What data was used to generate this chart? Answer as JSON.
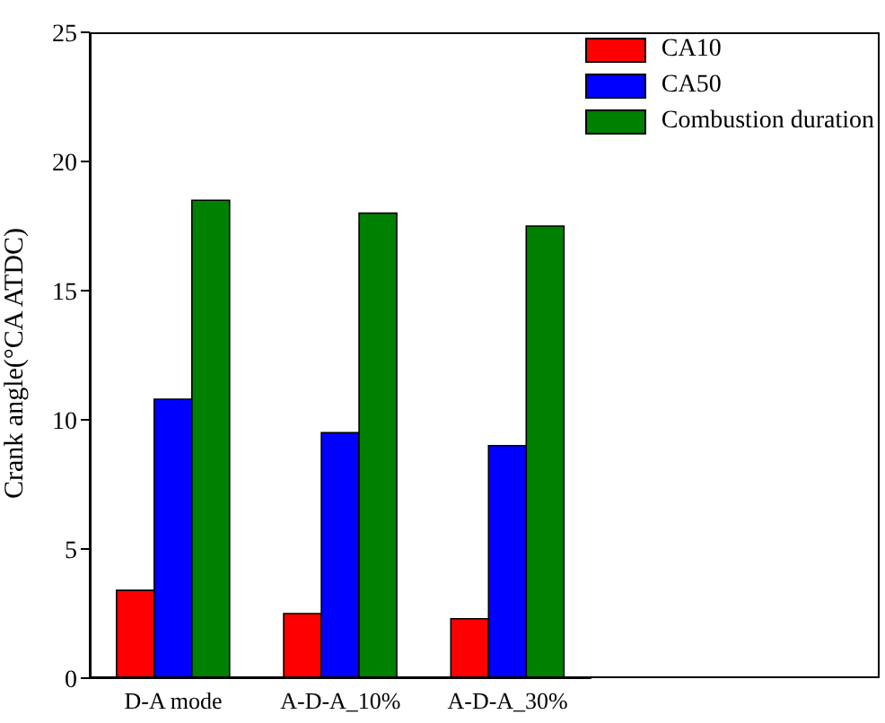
{
  "chart_data": {
    "type": "bar",
    "ylabel": "Crank angle(°CA ATDC)",
    "categories": [
      "D-A mode",
      "A-D-A_10%",
      "A-D-A_30%"
    ],
    "series": [
      {
        "name": "CA10",
        "color": "#ff0000",
        "values": [
          3.4,
          2.5,
          2.3
        ]
      },
      {
        "name": "CA50",
        "color": "#0000ff",
        "values": [
          10.8,
          9.5,
          9.0
        ]
      },
      {
        "name": "Combustion duration",
        "color": "#008000",
        "values": [
          18.5,
          18.0,
          17.5
        ]
      }
    ],
    "ylim": [
      0,
      25
    ],
    "yticks": [
      0,
      5,
      10,
      15,
      20,
      25
    ],
    "grid": false,
    "legend": "top right"
  }
}
